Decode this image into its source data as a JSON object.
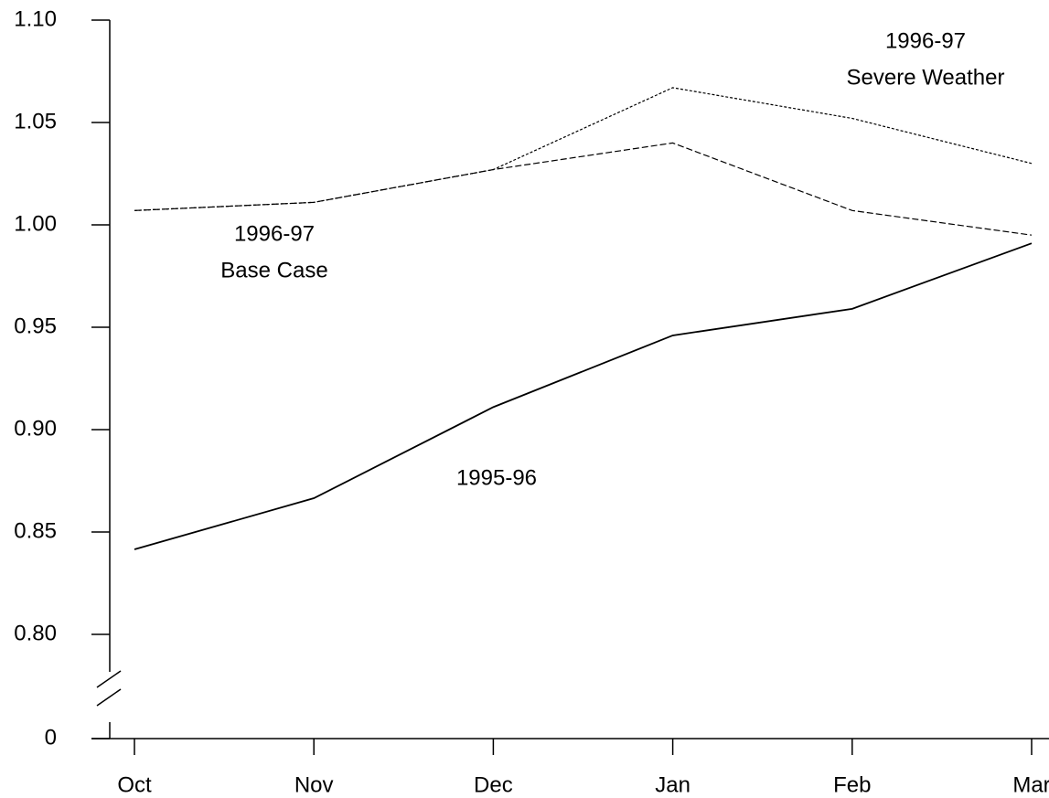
{
  "chart_data": {
    "type": "line",
    "categories": [
      "Oct",
      "Nov",
      "Dec",
      "Jan",
      "Feb",
      "Mar"
    ],
    "ylim": [
      0,
      1.1
    ],
    "y_break": [
      0,
      0.8
    ],
    "yticks": [
      0,
      {
        "value": 0.8,
        "label": "0.80"
      },
      {
        "value": 0.85,
        "label": "0.85"
      },
      {
        "value": 0.9,
        "label": "0.90"
      },
      {
        "value": 0.95,
        "label": "0.95"
      },
      {
        "value": 1.0,
        "label": "1.00"
      },
      {
        "value": 1.05,
        "label": "1.05"
      },
      {
        "value": 1.1,
        "label": "1.10"
      }
    ],
    "grid": false,
    "series": [
      {
        "label": [
          "1995-96"
        ],
        "color": "#000000",
        "dash": "solid",
        "values": [
          0.8415,
          0.8665,
          0.911,
          0.946,
          0.959,
          0.991
        ]
      },
      {
        "label": [
          "1996-97",
          "Base Case"
        ],
        "color": "#000000",
        "dash": "dashed",
        "values": [
          1.007,
          1.011,
          1.027,
          1.04,
          1.007,
          0.995
        ]
      },
      {
        "label": [
          "1996-97",
          "Severe Weather"
        ],
        "color": "#000000",
        "dash": "dotted",
        "values": [
          1.007,
          1.011,
          1.027,
          1.067,
          1.052,
          1.03
        ]
      }
    ]
  }
}
